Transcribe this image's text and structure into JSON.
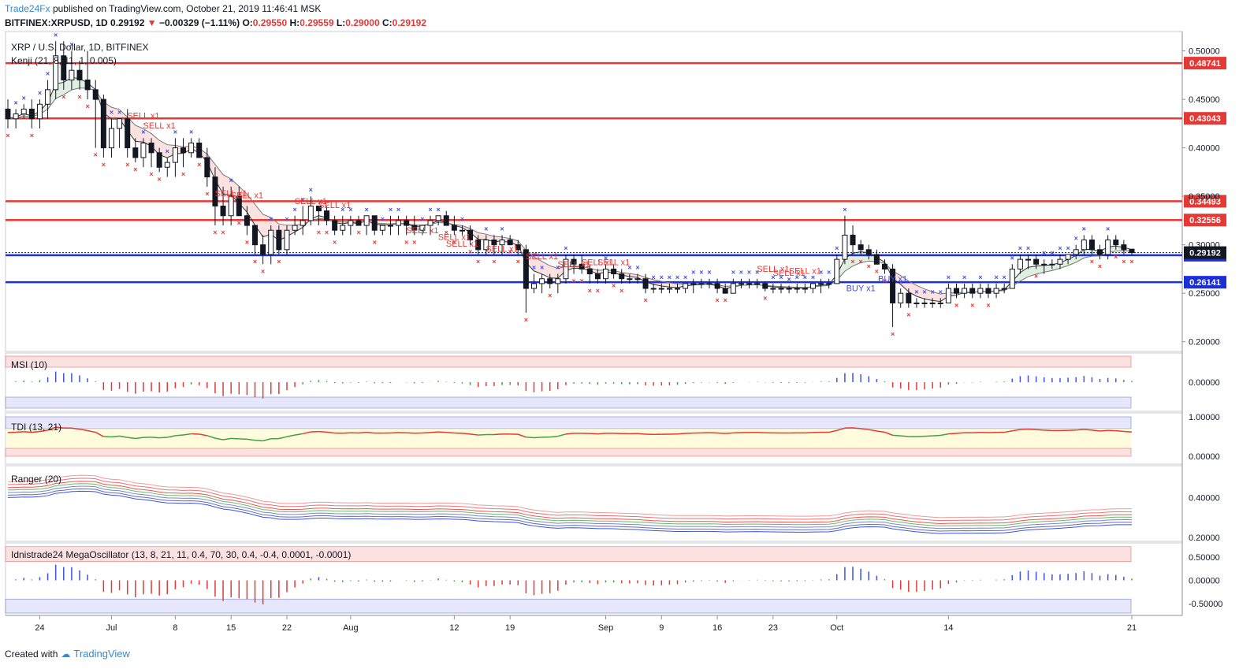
{
  "header": {
    "brand": "Trade24Fx",
    "published": "published on TradingView.com, October 21, 2019 11:46:41 MSK",
    "symbol": "BITFINEX:XRPUSD, 1D",
    "last": "0.29192",
    "change": "−0.00329 (−1.11%)",
    "o_label": "O:",
    "o": "0.29550",
    "h_label": "H:",
    "h": "0.29559",
    "l_label": "L:",
    "l": "0.29000",
    "c_label": "C:",
    "c": "0.29192",
    "down_color": "#e53935"
  },
  "footer": {
    "created_with": "Created with",
    "tradingview": "TradingView"
  },
  "panes": {
    "main": {
      "title": "XRP / U.S. Dollar, 1D, BITFINEX",
      "indicator": "Kenji (21, 8, 11, 1, 0.005)"
    },
    "msi": {
      "title": "MSI (10)"
    },
    "tdi": {
      "title": "TDI (13, 21)"
    },
    "ranger": {
      "title": "Ranger (20)"
    },
    "mega": {
      "title": "Idnistrade24 MegaOscillator (13, 8, 21, 11, 0.4, 70, 30, 0.4, -0.4, 0.0001, -0.0001)"
    }
  },
  "chart_data": {
    "type": "candlestick",
    "title": "XRP / U.S. Dollar, 1D, BITFINEX",
    "x_ticks": [
      "24",
      "Jul",
      "8",
      "15",
      "22",
      "Aug",
      "12",
      "19",
      "Sep",
      "9",
      "16",
      "23",
      "Oct",
      "14",
      "21"
    ],
    "y_ticks_main": [
      "0.50000",
      "0.45000",
      "0.40000",
      "0.35000",
      "0.30000",
      "0.25000",
      "0.20000"
    ],
    "ylim_main": [
      0.19,
      0.52
    ],
    "ohlc": [
      [
        0.44,
        0.45,
        0.42,
        0.43
      ],
      [
        0.43,
        0.44,
        0.42,
        0.435
      ],
      [
        0.435,
        0.445,
        0.43,
        0.44
      ],
      [
        0.44,
        0.45,
        0.42,
        0.43
      ],
      [
        0.43,
        0.45,
        0.42,
        0.445
      ],
      [
        0.445,
        0.47,
        0.43,
        0.46
      ],
      [
        0.46,
        0.51,
        0.45,
        0.495
      ],
      [
        0.495,
        0.51,
        0.46,
        0.47
      ],
      [
        0.47,
        0.5,
        0.46,
        0.48
      ],
      [
        0.48,
        0.49,
        0.46,
        0.47
      ],
      [
        0.47,
        0.5,
        0.45,
        0.46
      ],
      [
        0.46,
        0.47,
        0.4,
        0.45
      ],
      [
        0.45,
        0.455,
        0.39,
        0.4
      ],
      [
        0.4,
        0.43,
        0.39,
        0.42
      ],
      [
        0.42,
        0.43,
        0.4,
        0.43
      ],
      [
        0.43,
        0.44,
        0.39,
        0.4
      ],
      [
        0.4,
        0.41,
        0.385,
        0.39
      ],
      [
        0.39,
        0.41,
        0.38,
        0.405
      ],
      [
        0.405,
        0.41,
        0.38,
        0.395
      ],
      [
        0.395,
        0.4,
        0.375,
        0.38
      ],
      [
        0.38,
        0.39,
        0.37,
        0.385
      ],
      [
        0.385,
        0.41,
        0.37,
        0.4
      ],
      [
        0.4,
        0.41,
        0.38,
        0.395
      ],
      [
        0.395,
        0.41,
        0.39,
        0.405
      ],
      [
        0.405,
        0.41,
        0.39,
        0.39
      ],
      [
        0.39,
        0.4,
        0.36,
        0.37
      ],
      [
        0.37,
        0.38,
        0.32,
        0.34
      ],
      [
        0.34,
        0.36,
        0.32,
        0.33
      ],
      [
        0.33,
        0.36,
        0.32,
        0.35
      ],
      [
        0.35,
        0.36,
        0.33,
        0.33
      ],
      [
        0.33,
        0.34,
        0.31,
        0.32
      ],
      [
        0.32,
        0.32,
        0.29,
        0.3
      ],
      [
        0.3,
        0.31,
        0.28,
        0.29
      ],
      [
        0.29,
        0.32,
        0.28,
        0.315
      ],
      [
        0.315,
        0.32,
        0.29,
        0.295
      ],
      [
        0.295,
        0.32,
        0.29,
        0.315
      ],
      [
        0.315,
        0.33,
        0.31,
        0.32
      ],
      [
        0.32,
        0.34,
        0.31,
        0.325
      ],
      [
        0.325,
        0.35,
        0.32,
        0.34
      ],
      [
        0.34,
        0.34,
        0.32,
        0.335
      ],
      [
        0.335,
        0.34,
        0.32,
        0.325
      ],
      [
        0.325,
        0.33,
        0.31,
        0.315
      ],
      [
        0.315,
        0.33,
        0.31,
        0.32
      ],
      [
        0.32,
        0.33,
        0.31,
        0.325
      ],
      [
        0.325,
        0.33,
        0.32,
        0.32
      ],
      [
        0.32,
        0.33,
        0.31,
        0.33
      ],
      [
        0.33,
        0.33,
        0.31,
        0.315
      ],
      [
        0.315,
        0.32,
        0.31,
        0.32
      ],
      [
        0.32,
        0.33,
        0.31,
        0.32
      ],
      [
        0.32,
        0.33,
        0.31,
        0.325
      ],
      [
        0.325,
        0.33,
        0.31,
        0.32
      ],
      [
        0.32,
        0.33,
        0.31,
        0.315
      ],
      [
        0.315,
        0.32,
        0.31,
        0.32
      ],
      [
        0.32,
        0.33,
        0.31,
        0.325
      ],
      [
        0.325,
        0.33,
        0.32,
        0.33
      ],
      [
        0.33,
        0.335,
        0.32,
        0.32
      ],
      [
        0.32,
        0.33,
        0.31,
        0.315
      ],
      [
        0.315,
        0.32,
        0.31,
        0.315
      ],
      [
        0.315,
        0.32,
        0.3,
        0.305
      ],
      [
        0.305,
        0.31,
        0.29,
        0.295
      ],
      [
        0.295,
        0.31,
        0.29,
        0.305
      ],
      [
        0.305,
        0.31,
        0.29,
        0.3
      ],
      [
        0.3,
        0.31,
        0.29,
        0.305
      ],
      [
        0.305,
        0.31,
        0.3,
        0.3
      ],
      [
        0.3,
        0.305,
        0.29,
        0.295
      ],
      [
        0.295,
        0.3,
        0.23,
        0.255
      ],
      [
        0.255,
        0.27,
        0.25,
        0.26
      ],
      [
        0.26,
        0.27,
        0.25,
        0.265
      ],
      [
        0.265,
        0.27,
        0.255,
        0.26
      ],
      [
        0.26,
        0.27,
        0.25,
        0.265
      ],
      [
        0.265,
        0.29,
        0.26,
        0.285
      ],
      [
        0.285,
        0.29,
        0.27,
        0.28
      ],
      [
        0.28,
        0.29,
        0.27,
        0.275
      ],
      [
        0.275,
        0.28,
        0.26,
        0.27
      ],
      [
        0.27,
        0.275,
        0.26,
        0.265
      ],
      [
        0.265,
        0.28,
        0.26,
        0.275
      ],
      [
        0.275,
        0.28,
        0.265,
        0.27
      ],
      [
        0.27,
        0.275,
        0.26,
        0.265
      ],
      [
        0.265,
        0.27,
        0.26,
        0.265
      ],
      [
        0.265,
        0.27,
        0.26,
        0.265
      ],
      [
        0.265,
        0.27,
        0.25,
        0.255
      ],
      [
        0.255,
        0.26,
        0.25,
        0.255
      ],
      [
        0.255,
        0.26,
        0.25,
        0.255
      ],
      [
        0.255,
        0.26,
        0.25,
        0.255
      ],
      [
        0.255,
        0.26,
        0.25,
        0.255
      ],
      [
        0.255,
        0.26,
        0.25,
        0.26
      ],
      [
        0.26,
        0.265,
        0.25,
        0.26
      ],
      [
        0.26,
        0.265,
        0.255,
        0.26
      ],
      [
        0.26,
        0.265,
        0.255,
        0.26
      ],
      [
        0.26,
        0.265,
        0.25,
        0.255
      ],
      [
        0.255,
        0.26,
        0.25,
        0.25
      ],
      [
        0.25,
        0.265,
        0.25,
        0.26
      ],
      [
        0.26,
        0.265,
        0.255,
        0.26
      ],
      [
        0.26,
        0.265,
        0.255,
        0.26
      ],
      [
        0.26,
        0.265,
        0.255,
        0.26
      ],
      [
        0.26,
        0.262,
        0.252,
        0.255
      ],
      [
        0.255,
        0.26,
        0.25,
        0.255
      ],
      [
        0.255,
        0.26,
        0.25,
        0.255
      ],
      [
        0.255,
        0.258,
        0.25,
        0.255
      ],
      [
        0.255,
        0.26,
        0.25,
        0.255
      ],
      [
        0.255,
        0.26,
        0.25,
        0.255
      ],
      [
        0.255,
        0.26,
        0.25,
        0.26
      ],
      [
        0.26,
        0.265,
        0.25,
        0.26
      ],
      [
        0.26,
        0.265,
        0.255,
        0.26
      ],
      [
        0.26,
        0.29,
        0.26,
        0.285
      ],
      [
        0.285,
        0.33,
        0.28,
        0.31
      ],
      [
        0.31,
        0.32,
        0.29,
        0.3
      ],
      [
        0.3,
        0.305,
        0.29,
        0.295
      ],
      [
        0.295,
        0.3,
        0.285,
        0.29
      ],
      [
        0.29,
        0.295,
        0.28,
        0.28
      ],
      [
        0.28,
        0.285,
        0.27,
        0.275
      ],
      [
        0.275,
        0.28,
        0.215,
        0.24
      ],
      [
        0.24,
        0.255,
        0.235,
        0.25
      ],
      [
        0.25,
        0.255,
        0.235,
        0.24
      ],
      [
        0.24,
        0.245,
        0.235,
        0.24
      ],
      [
        0.24,
        0.245,
        0.235,
        0.24
      ],
      [
        0.24,
        0.245,
        0.235,
        0.24
      ],
      [
        0.24,
        0.245,
        0.235,
        0.24
      ],
      [
        0.24,
        0.26,
        0.24,
        0.255
      ],
      [
        0.255,
        0.26,
        0.245,
        0.25
      ],
      [
        0.25,
        0.26,
        0.245,
        0.255
      ],
      [
        0.255,
        0.26,
        0.245,
        0.25
      ],
      [
        0.25,
        0.26,
        0.245,
        0.255
      ],
      [
        0.255,
        0.26,
        0.245,
        0.25
      ],
      [
        0.25,
        0.26,
        0.245,
        0.255
      ],
      [
        0.255,
        0.26,
        0.25,
        0.255
      ],
      [
        0.255,
        0.28,
        0.255,
        0.275
      ],
      [
        0.275,
        0.29,
        0.27,
        0.285
      ],
      [
        0.285,
        0.29,
        0.275,
        0.285
      ],
      [
        0.285,
        0.29,
        0.275,
        0.28
      ],
      [
        0.28,
        0.285,
        0.27,
        0.28
      ],
      [
        0.28,
        0.285,
        0.275,
        0.28
      ],
      [
        0.28,
        0.29,
        0.275,
        0.285
      ],
      [
        0.285,
        0.29,
        0.28,
        0.29
      ],
      [
        0.29,
        0.3,
        0.285,
        0.295
      ],
      [
        0.295,
        0.31,
        0.29,
        0.305
      ],
      [
        0.305,
        0.31,
        0.29,
        0.295
      ],
      [
        0.295,
        0.3,
        0.285,
        0.29
      ],
      [
        0.29,
        0.31,
        0.285,
        0.305
      ],
      [
        0.305,
        0.31,
        0.295,
        0.3
      ],
      [
        0.3,
        0.305,
        0.29,
        0.295
      ],
      [
        0.2955,
        0.2956,
        0.29,
        0.29192
      ]
    ],
    "horizontal_levels": [
      {
        "value": 0.48741,
        "label": "0.48741",
        "color": "#e53935"
      },
      {
        "value": 0.43043,
        "label": "0.43043",
        "color": "#e53935"
      },
      {
        "value": 0.34493,
        "label": "0.34493",
        "color": "#e53935"
      },
      {
        "value": 0.32556,
        "label": "0.32556",
        "color": "#e53935"
      },
      {
        "value": 0.2893,
        "label": "0.28930",
        "color": "#1b2fd6"
      },
      {
        "value": 0.26141,
        "label": "0.26141",
        "color": "#1b2fd6"
      }
    ],
    "last_price": {
      "value": 0.29192,
      "label": "0.29192"
    },
    "signals": [
      {
        "text": "SELL x1",
        "i": 17,
        "y": 0.43
      },
      {
        "text": "SELL x1",
        "i": 19,
        "y": 0.42
      },
      {
        "text": "SELL x1",
        "i": 28,
        "y": 0.35
      },
      {
        "text": "SELL x1",
        "i": 30,
        "y": 0.348
      },
      {
        "text": "SELL x1",
        "i": 38,
        "y": 0.342
      },
      {
        "text": "SELL x1",
        "i": 41,
        "y": 0.338
      },
      {
        "text": "SELL x1",
        "i": 52,
        "y": 0.312
      },
      {
        "text": "SELL x1",
        "i": 56,
        "y": 0.305
      },
      {
        "text": "SELL x1",
        "i": 57,
        "y": 0.298
      },
      {
        "text": "SELL x1",
        "i": 62,
        "y": 0.293
      },
      {
        "text": "SELL x1",
        "i": 67,
        "y": 0.285
      },
      {
        "text": "SELL x1",
        "i": 71,
        "y": 0.277
      },
      {
        "text": "SELL x1",
        "i": 74,
        "y": 0.279
      },
      {
        "text": "SELL x1",
        "i": 76,
        "y": 0.279
      },
      {
        "text": "SELL x1",
        "i": 96,
        "y": 0.272
      },
      {
        "text": "SELL x1",
        "i": 98,
        "y": 0.268
      },
      {
        "text": "SELL x1",
        "i": 100,
        "y": 0.27
      }
    ],
    "buy_signals": [
      {
        "text": "BUY x1",
        "i": 107,
        "y": 0.252
      },
      {
        "text": "BUY x1",
        "i": 111,
        "y": 0.262
      }
    ],
    "msi": {
      "ylim": [
        -0.05,
        0.05
      ],
      "y_ticks": [
        "0.00000"
      ]
    },
    "tdi": {
      "ylim": [
        -0.2,
        1.1
      ],
      "y_ticks": [
        "1.00000",
        "0.00000"
      ]
    },
    "ranger": {
      "ylim": [
        0.18,
        0.56
      ],
      "y_ticks": [
        "0.40000",
        "0.20000"
      ]
    },
    "mega": {
      "ylim": [
        -0.75,
        0.8
      ],
      "y_ticks": [
        "0.50000",
        "0.00000",
        "-0.50000"
      ]
    }
  }
}
